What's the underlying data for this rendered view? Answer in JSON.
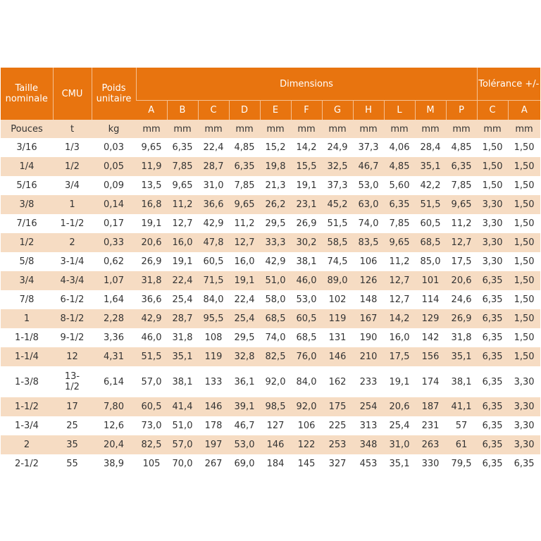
{
  "table": {
    "headers": {
      "taille": "Taille nominale",
      "cmu": "CMU",
      "poids": "Poids unitaire",
      "dimensions": "Dimensions",
      "tolerance": "Tolérance +/-",
      "dim_letters": [
        "A",
        "B",
        "C",
        "D",
        "E",
        "F",
        "G",
        "H",
        "L",
        "M",
        "P"
      ],
      "tol_letters": [
        "C",
        "A"
      ]
    },
    "units": [
      "Pouces",
      "t",
      "kg",
      "mm",
      "mm",
      "mm",
      "mm",
      "mm",
      "mm",
      "mm",
      "mm",
      "mm",
      "mm",
      "mm",
      "mm",
      "mm"
    ],
    "rows": [
      [
        "3/16",
        "1/3",
        "0,03",
        "9,65",
        "6,35",
        "22,4",
        "4,85",
        "15,2",
        "14,2",
        "24,9",
        "37,3",
        "4,06",
        "28,4",
        "4,85",
        "1,50",
        "1,50"
      ],
      [
        "1/4",
        "1/2",
        "0,05",
        "11,9",
        "7,85",
        "28,7",
        "6,35",
        "19,8",
        "15,5",
        "32,5",
        "46,7",
        "4,85",
        "35,1",
        "6,35",
        "1,50",
        "1,50"
      ],
      [
        "5/16",
        "3/4",
        "0,09",
        "13,5",
        "9,65",
        "31,0",
        "7,85",
        "21,3",
        "19,1",
        "37,3",
        "53,0",
        "5,60",
        "42,2",
        "7,85",
        "1,50",
        "1,50"
      ],
      [
        "3/8",
        "1",
        "0,14",
        "16,8",
        "11,2",
        "36,6",
        "9,65",
        "26,2",
        "23,1",
        "45,2",
        "63,0",
        "6,35",
        "51,5",
        "9,65",
        "3,30",
        "1,50"
      ],
      [
        "7/16",
        "1-1/2",
        "0,17",
        "19,1",
        "12,7",
        "42,9",
        "11,2",
        "29,5",
        "26,9",
        "51,5",
        "74,0",
        "7,85",
        "60,5",
        "11,2",
        "3,30",
        "1,50"
      ],
      [
        "1/2",
        "2",
        "0,33",
        "20,6",
        "16,0",
        "47,8",
        "12,7",
        "33,3",
        "30,2",
        "58,5",
        "83,5",
        "9,65",
        "68,5",
        "12,7",
        "3,30",
        "1,50"
      ],
      [
        "5/8",
        "3-1/4",
        "0,62",
        "26,9",
        "19,1",
        "60,5",
        "16,0",
        "42,9",
        "38,1",
        "74,5",
        "106",
        "11,2",
        "85,0",
        "17,5",
        "3,30",
        "1,50"
      ],
      [
        "3/4",
        "4-3/4",
        "1,07",
        "31,8",
        "22,4",
        "71,5",
        "19,1",
        "51,0",
        "46,0",
        "89,0",
        "126",
        "12,7",
        "101",
        "20,6",
        "6,35",
        "1,50"
      ],
      [
        "7/8",
        "6-1/2",
        "1,64",
        "36,6",
        "25,4",
        "84,0",
        "22,4",
        "58,0",
        "53,0",
        "102",
        "148",
        "12,7",
        "114",
        "24,6",
        "6,35",
        "1,50"
      ],
      [
        "1",
        "8-1/2",
        "2,28",
        "42,9",
        "28,7",
        "95,5",
        "25,4",
        "68,5",
        "60,5",
        "119",
        "167",
        "14,2",
        "129",
        "26,9",
        "6,35",
        "1,50"
      ],
      [
        "1-1/8",
        "9-1/2",
        "3,36",
        "46,0",
        "31,8",
        "108",
        "29,5",
        "74,0",
        "68,5",
        "131",
        "190",
        "16,0",
        "142",
        "31,8",
        "6,35",
        "1,50"
      ],
      [
        "1-1/4",
        "12",
        "4,31",
        "51,5",
        "35,1",
        "119",
        "32,8",
        "82,5",
        "76,0",
        "146",
        "210",
        "17,5",
        "156",
        "35,1",
        "6,35",
        "1,50"
      ],
      [
        "1-3/8",
        "13-1/2",
        "6,14",
        "57,0",
        "38,1",
        "133",
        "36,1",
        "92,0",
        "84,0",
        "162",
        "233",
        "19,1",
        "174",
        "38,1",
        "6,35",
        "3,30"
      ],
      [
        "1-1/2",
        "17",
        "7,80",
        "60,5",
        "41,4",
        "146",
        "39,1",
        "98,5",
        "92,0",
        "175",
        "254",
        "20,6",
        "187",
        "41,1",
        "6,35",
        "3,30"
      ],
      [
        "1-3/4",
        "25",
        "12,6",
        "73,0",
        "51,0",
        "178",
        "46,7",
        "127",
        "106",
        "225",
        "313",
        "25,4",
        "231",
        "57",
        "6,35",
        "3,30"
      ],
      [
        "2",
        "35",
        "20,4",
        "82,5",
        "57,0",
        "197",
        "53,0",
        "146",
        "122",
        "253",
        "348",
        "31,0",
        "263",
        "61",
        "6,35",
        "3,30"
      ],
      [
        "2-1/2",
        "55",
        "38,9",
        "105",
        "70,0",
        "267",
        "69,0",
        "184",
        "145",
        "327",
        "453",
        "35,1",
        "330",
        "79,5",
        "6,35",
        "6,35"
      ]
    ]
  }
}
